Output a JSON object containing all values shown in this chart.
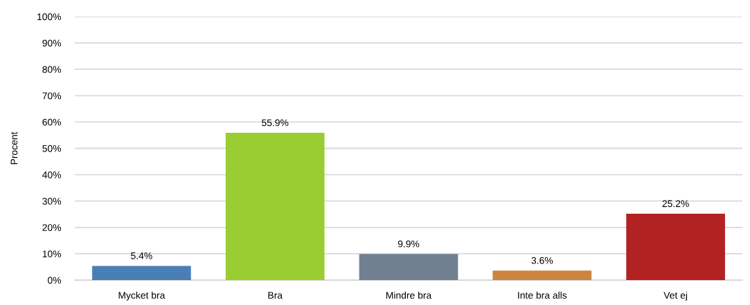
{
  "chart_data": {
    "type": "bar",
    "ylabel": "Procent",
    "categories": [
      "Mycket bra",
      "Bra",
      "Mindre bra",
      "Inte bra alls",
      "Vet ej"
    ],
    "values": [
      5.4,
      55.9,
      9.9,
      3.6,
      25.2
    ],
    "colors": [
      "#4a7fb5",
      "#9acd32",
      "#708090",
      "#cd853f",
      "#b22222"
    ],
    "value_labels": [
      "5.4%",
      "55.9%",
      "9.9%",
      "3.6%",
      "25.2%"
    ],
    "ylim": [
      0,
      100
    ],
    "yticks": [
      {
        "value": 0,
        "label": "0%"
      },
      {
        "value": 10,
        "label": "10%"
      },
      {
        "value": 20,
        "label": "20%"
      },
      {
        "value": 30,
        "label": "30%"
      },
      {
        "value": 40,
        "label": "40%"
      },
      {
        "value": 50,
        "label": "50%"
      },
      {
        "value": 60,
        "label": "60%"
      },
      {
        "value": 70,
        "label": "70%"
      },
      {
        "value": 80,
        "label": "80%"
      },
      {
        "value": 90,
        "label": "90%"
      },
      {
        "value": 100,
        "label": "100%"
      }
    ],
    "grid": "y",
    "legend": false
  }
}
